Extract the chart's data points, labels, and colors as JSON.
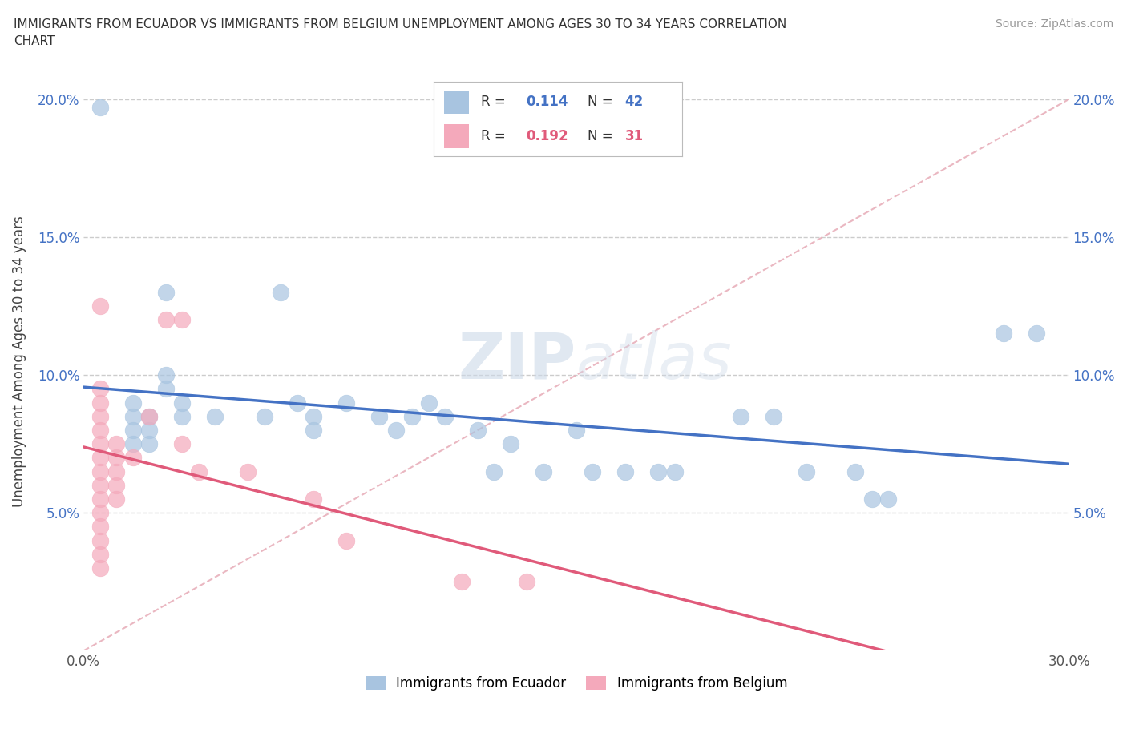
{
  "title": "IMMIGRANTS FROM ECUADOR VS IMMIGRANTS FROM BELGIUM UNEMPLOYMENT AMONG AGES 30 TO 34 YEARS CORRELATION\nCHART",
  "source_text": "Source: ZipAtlas.com",
  "ylabel": "Unemployment Among Ages 30 to 34 years",
  "xlim": [
    0.0,
    0.3
  ],
  "ylim": [
    0.0,
    0.21
  ],
  "ecuador_color": "#a8c4e0",
  "belgium_color": "#f4a9bb",
  "ecuador_line_color": "#4472c4",
  "belgium_line_color": "#e05a7a",
  "diagonal_line_color": "#e8b0bb",
  "background_color": "#ffffff",
  "watermark_color": "#ccd9e8",
  "ecuador_scatter": [
    [
      0.005,
      0.197
    ],
    [
      0.025,
      0.13
    ],
    [
      0.06,
      0.13
    ],
    [
      0.025,
      0.1
    ],
    [
      0.025,
      0.095
    ],
    [
      0.03,
      0.09
    ],
    [
      0.03,
      0.085
    ],
    [
      0.02,
      0.085
    ],
    [
      0.02,
      0.08
    ],
    [
      0.02,
      0.075
    ],
    [
      0.015,
      0.09
    ],
    [
      0.015,
      0.085
    ],
    [
      0.015,
      0.08
    ],
    [
      0.015,
      0.075
    ],
    [
      0.04,
      0.085
    ],
    [
      0.055,
      0.085
    ],
    [
      0.065,
      0.09
    ],
    [
      0.07,
      0.085
    ],
    [
      0.07,
      0.08
    ],
    [
      0.08,
      0.09
    ],
    [
      0.09,
      0.085
    ],
    [
      0.095,
      0.08
    ],
    [
      0.1,
      0.085
    ],
    [
      0.105,
      0.09
    ],
    [
      0.11,
      0.085
    ],
    [
      0.12,
      0.08
    ],
    [
      0.125,
      0.065
    ],
    [
      0.13,
      0.075
    ],
    [
      0.14,
      0.065
    ],
    [
      0.15,
      0.08
    ],
    [
      0.155,
      0.065
    ],
    [
      0.165,
      0.065
    ],
    [
      0.175,
      0.065
    ],
    [
      0.18,
      0.065
    ],
    [
      0.2,
      0.085
    ],
    [
      0.21,
      0.085
    ],
    [
      0.22,
      0.065
    ],
    [
      0.235,
      0.065
    ],
    [
      0.24,
      0.055
    ],
    [
      0.245,
      0.055
    ],
    [
      0.28,
      0.115
    ],
    [
      0.29,
      0.115
    ]
  ],
  "belgium_scatter": [
    [
      0.005,
      0.125
    ],
    [
      0.005,
      0.095
    ],
    [
      0.005,
      0.09
    ],
    [
      0.005,
      0.085
    ],
    [
      0.005,
      0.08
    ],
    [
      0.005,
      0.075
    ],
    [
      0.005,
      0.07
    ],
    [
      0.005,
      0.065
    ],
    [
      0.005,
      0.06
    ],
    [
      0.005,
      0.055
    ],
    [
      0.005,
      0.05
    ],
    [
      0.005,
      0.045
    ],
    [
      0.005,
      0.04
    ],
    [
      0.005,
      0.035
    ],
    [
      0.005,
      0.03
    ],
    [
      0.01,
      0.075
    ],
    [
      0.01,
      0.07
    ],
    [
      0.01,
      0.065
    ],
    [
      0.01,
      0.06
    ],
    [
      0.01,
      0.055
    ],
    [
      0.015,
      0.07
    ],
    [
      0.02,
      0.085
    ],
    [
      0.025,
      0.12
    ],
    [
      0.03,
      0.12
    ],
    [
      0.03,
      0.075
    ],
    [
      0.035,
      0.065
    ],
    [
      0.05,
      0.065
    ],
    [
      0.07,
      0.055
    ],
    [
      0.08,
      0.04
    ],
    [
      0.115,
      0.025
    ],
    [
      0.135,
      0.025
    ]
  ],
  "ecuador_R": "0.114",
  "ecuador_N": "42",
  "belgium_R": "0.192",
  "belgium_N": "31",
  "ecuador_label": "Immigrants from Ecuador",
  "belgium_label": "Immigrants from Belgium"
}
